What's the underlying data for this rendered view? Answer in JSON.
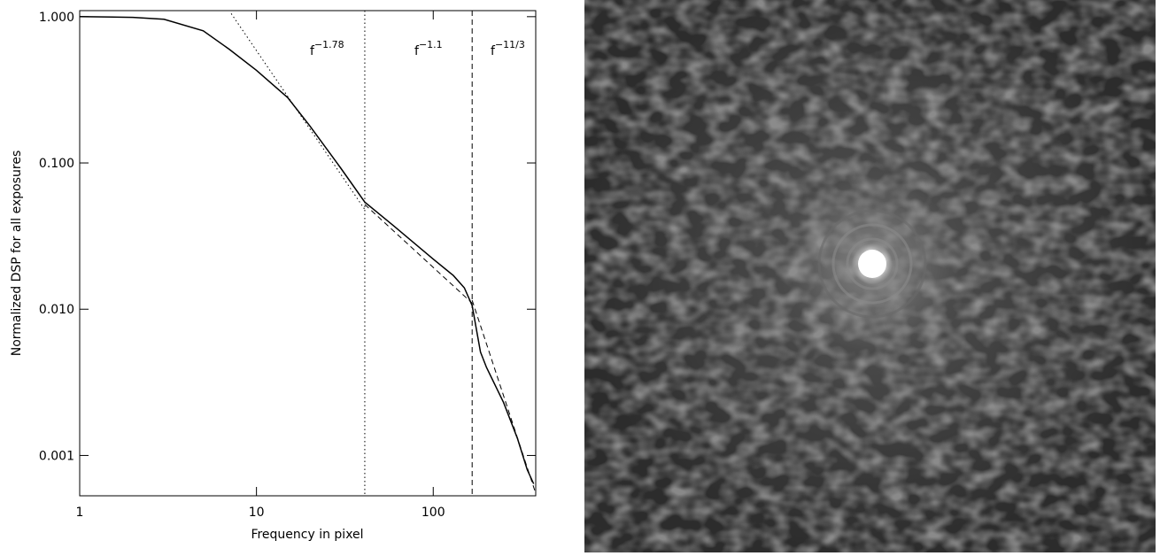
{
  "chart_data": {
    "type": "line",
    "xlabel": "Frequency in pixel",
    "ylabel": "Normalized DSP for all exposures",
    "log_x": true,
    "log_y": true,
    "xlim": [
      1,
      380
    ],
    "ylim": [
      0.00053,
      1.1
    ],
    "xticks": [
      1,
      10,
      100
    ],
    "yticks": [
      {
        "value": 1,
        "label": "1.000"
      },
      {
        "value": 0.1,
        "label": "0.100"
      },
      {
        "value": 0.01,
        "label": "0.010"
      },
      {
        "value": 0.001,
        "label": "0.001"
      }
    ],
    "color": "#000000",
    "series": [
      {
        "style": "solid",
        "x": [
          1,
          2,
          3,
          5,
          7,
          10,
          15,
          20,
          30,
          41,
          60,
          100,
          130,
          150,
          166,
          185,
          200,
          250,
          300,
          340,
          370
        ],
        "values": [
          1.0,
          0.99,
          0.96,
          0.8,
          0.6,
          0.43,
          0.28,
          0.18,
          0.092,
          0.054,
          0.037,
          0.022,
          0.017,
          0.014,
          0.0106,
          0.0051,
          0.004,
          0.0023,
          0.0013,
          0.0008,
          0.00064
        ]
      },
      {
        "style": "dotted",
        "x": [
          7.2,
          41
        ],
        "values": [
          1.05,
          0.048
        ]
      },
      {
        "style": "dashed",
        "x": [
          41,
          166
        ],
        "values": [
          0.052,
          0.011
        ]
      },
      {
        "style": "dashed",
        "x": [
          166,
          380
        ],
        "values": [
          0.0115,
          0.00055
        ]
      }
    ],
    "vlines": [
      {
        "x": 41,
        "style": "dotted"
      },
      {
        "x": 166,
        "style": "dashed"
      }
    ],
    "annotations": [
      {
        "base": "f",
        "exponent": "−1.78"
      },
      {
        "base": "f",
        "exponent": "−1.1"
      },
      {
        "base": "f",
        "exponent": "−11/3"
      }
    ]
  }
}
